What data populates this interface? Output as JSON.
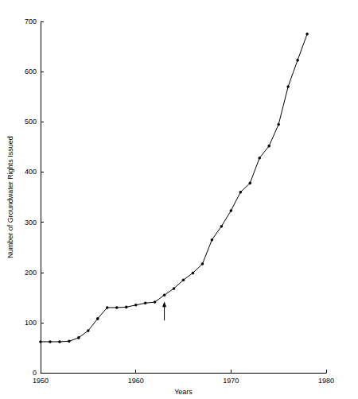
{
  "chart_data": {
    "type": "line",
    "x_label": "Years",
    "y_label": "Number of Groundwater Rights Issued",
    "x": [
      1950,
      1951,
      1952,
      1953,
      1954,
      1955,
      1956,
      1957,
      1958,
      1959,
      1960,
      1961,
      1962,
      1963,
      1964,
      1965,
      1966,
      1967,
      1968,
      1969,
      1970,
      1971,
      1972,
      1973,
      1974,
      1975,
      1976,
      1977,
      1978
    ],
    "values": [
      62,
      62,
      62,
      63,
      70,
      84,
      108,
      130,
      130,
      131,
      135,
      139,
      141,
      155,
      168,
      185,
      199,
      217,
      265,
      292,
      323,
      360,
      378,
      428,
      452,
      495,
      570,
      623,
      675
    ],
    "color": "#000000",
    "marker": "circle",
    "line_style": "solid",
    "xlim": [
      1950,
      1980
    ],
    "xticks": [
      1950,
      1960,
      1970,
      1980
    ],
    "ylim": [
      0,
      700
    ],
    "yticks": [
      0,
      100,
      200,
      300,
      400,
      500,
      600,
      700
    ],
    "grid": false,
    "arrow_x": 1963
  }
}
